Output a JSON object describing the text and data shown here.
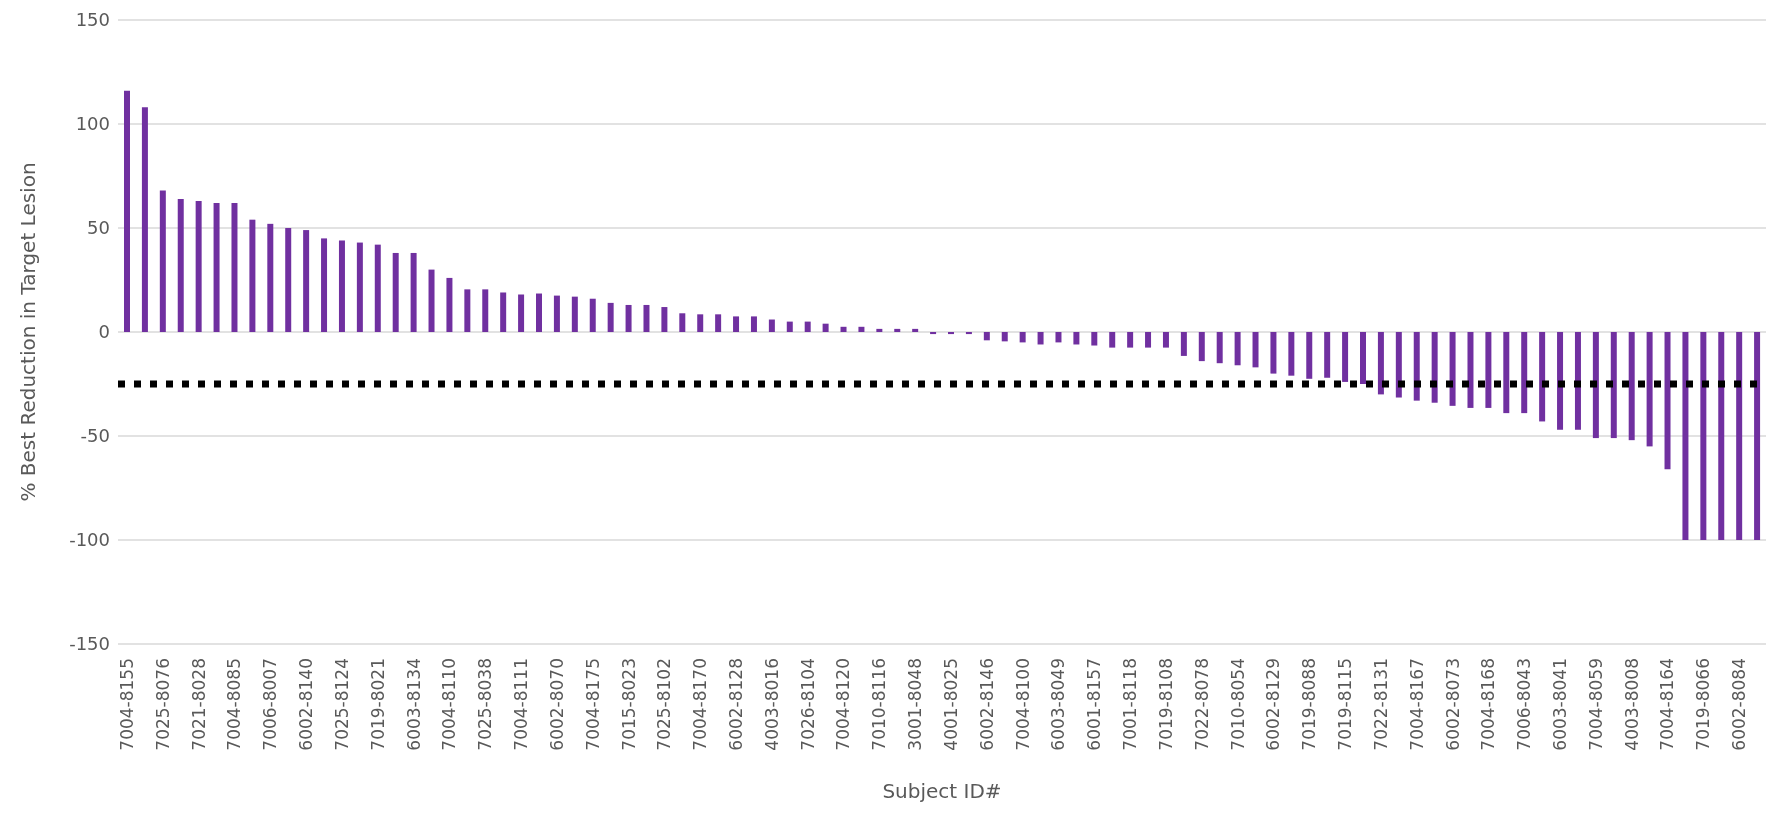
{
  "chart_data": {
    "type": "bar",
    "xlabel": "Subject ID#",
    "ylabel": "% Best Reduction in Target Lesion",
    "categories": [
      "7004-8155",
      null,
      "7025-8076",
      null,
      "7021-8028",
      null,
      "7004-8085",
      null,
      "7006-8007",
      null,
      "6002-8140",
      null,
      "7025-8124",
      null,
      "7019-8021",
      null,
      "6003-8134",
      null,
      "7004-8110",
      null,
      "7025-8038",
      null,
      "7004-8111",
      null,
      "6002-8070",
      null,
      "7004-8175",
      null,
      "7015-8023",
      null,
      "7025-8102",
      null,
      "7004-8170",
      null,
      "6002-8128",
      null,
      "4003-8016",
      null,
      "7026-8104",
      null,
      "7004-8120",
      null,
      "7010-8116",
      null,
      "3001-8048",
      null,
      "4001-8025",
      null,
      "6002-8146",
      null,
      "7004-8100",
      null,
      "6003-8049",
      null,
      "6001-8157",
      null,
      "7001-8118",
      null,
      "7019-8108",
      null,
      "7022-8078",
      null,
      "7010-8054",
      null,
      "6002-8129",
      null,
      "7019-8088",
      null,
      "7019-8115",
      null,
      "7022-8131",
      null,
      "7004-8167",
      null,
      "6002-8073",
      null,
      "7004-8168",
      null,
      "7006-8043",
      null,
      "6003-8041",
      null,
      "7004-8059",
      null,
      "4003-8008",
      null,
      "7004-8164",
      null,
      "7019-8066",
      null,
      "6002-8084",
      null
    ],
    "values": [
      116,
      108,
      68,
      64,
      63,
      62,
      62,
      54,
      52,
      50,
      49,
      45,
      44,
      43,
      42,
      38,
      38,
      30,
      26,
      20.5,
      20.5,
      19,
      18,
      18.5,
      17.5,
      17,
      16,
      14,
      13,
      13,
      12,
      9,
      8.5,
      8.5,
      7.5,
      7.5,
      6,
      5,
      5,
      4,
      2.5,
      2.5,
      1.5,
      1.5,
      1.5,
      -1,
      -1,
      -1,
      -4,
      -4.5,
      -5,
      -6,
      -5,
      -6,
      -6.5,
      -7.5,
      -7.5,
      -7.5,
      -7.5,
      -11.5,
      -14,
      -15,
      -16,
      -17,
      -20,
      -21,
      -22.5,
      -22,
      -24,
      -25,
      -30,
      -31.5,
      -33,
      -34,
      -35.5,
      -36.5,
      -36.5,
      -39,
      -39,
      -43,
      -47,
      -47,
      -51,
      -51,
      -52,
      -55,
      -66,
      -100,
      -100,
      -100,
      -100,
      -100
    ],
    "color": "#7030a0",
    "ylim": [
      -150,
      150
    ],
    "yticks": [
      -150,
      -100,
      -50,
      0,
      50,
      100,
      150
    ],
    "grid": "y",
    "ref_lines": [
      {
        "axis": "y",
        "value": -25,
        "color": "#000000",
        "line_style": "dotted"
      }
    ]
  }
}
